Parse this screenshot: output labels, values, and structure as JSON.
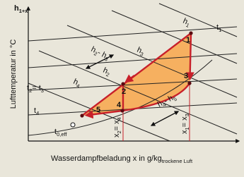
{
  "diagram": {
    "title": [
      "h",
      "1+x"
    ],
    "y_axis_label": "Lufttemperatur in °C",
    "x_axis_label": [
      "Wasserdampfbeladung x in g/kg",
      "trockene Luft"
    ],
    "enthalpy_labels": [
      [
        "h",
        "1"
      ],
      [
        "h",
        "2"
      ],
      [
        "h",
        "3"
      ],
      [
        "h",
        "4"
      ]
    ],
    "temperature_labels": [
      [
        "t",
        "1"
      ],
      [
        "t",
        "2",
        "= t",
        "3"
      ],
      [
        "t",
        "4"
      ]
    ],
    "difference_labels": [
      [
        "h",
        "2",
        "- h",
        "3"
      ],
      [
        "h",
        "4",
        "- h",
        "5"
      ]
    ],
    "moisture_labels": [
      [
        "x",
        "2",
        "= x",
        "4"
      ],
      [
        "x",
        "1",
        "= x",
        "3"
      ]
    ],
    "dew_point_label": [
      "t",
      "0,eff"
    ],
    "points": [
      "1",
      "2",
      "3",
      "4",
      "5"
    ]
  }
}
